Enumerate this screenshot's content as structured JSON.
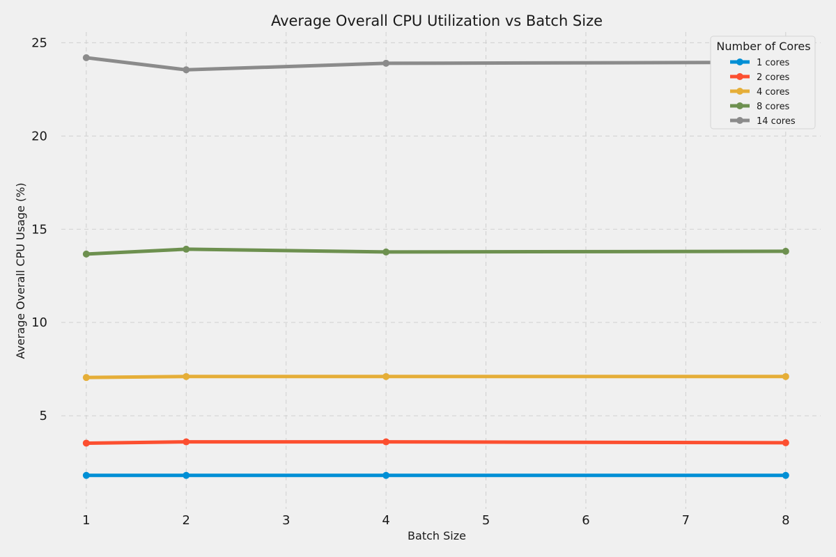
{
  "chart_data": {
    "type": "line",
    "title": "Average Overall CPU Utilization vs Batch Size",
    "xlabel": "Batch Size",
    "ylabel": "Average Overall CPU Usage (%)",
    "x": [
      1,
      2,
      4,
      8
    ],
    "xlim": [
      0.75,
      8.35
    ],
    "ylim": [
      0,
      25.8
    ],
    "xticks": [
      1,
      2,
      3,
      4,
      5,
      6,
      7,
      8
    ],
    "yticks": [
      5,
      10,
      15,
      20,
      25
    ],
    "grid": true,
    "legend": {
      "title": "Number of Cores",
      "placement": "top-right"
    },
    "series": [
      {
        "name": "1 cores",
        "color": "#008fd5",
        "values": [
          1.8,
          1.8,
          1.8,
          1.8
        ]
      },
      {
        "name": "2 cores",
        "color": "#fc4f30",
        "values": [
          3.53,
          3.6,
          3.6,
          3.55
        ]
      },
      {
        "name": "4 cores",
        "color": "#e5ae38",
        "values": [
          7.05,
          7.1,
          7.1,
          7.1
        ]
      },
      {
        "name": "8 cores",
        "color": "#6d904f",
        "values": [
          13.67,
          13.93,
          13.78,
          13.82
        ]
      },
      {
        "name": "14 cores",
        "color": "#8b8b8b",
        "values": [
          24.2,
          23.55,
          23.9,
          23.95
        ]
      }
    ]
  }
}
